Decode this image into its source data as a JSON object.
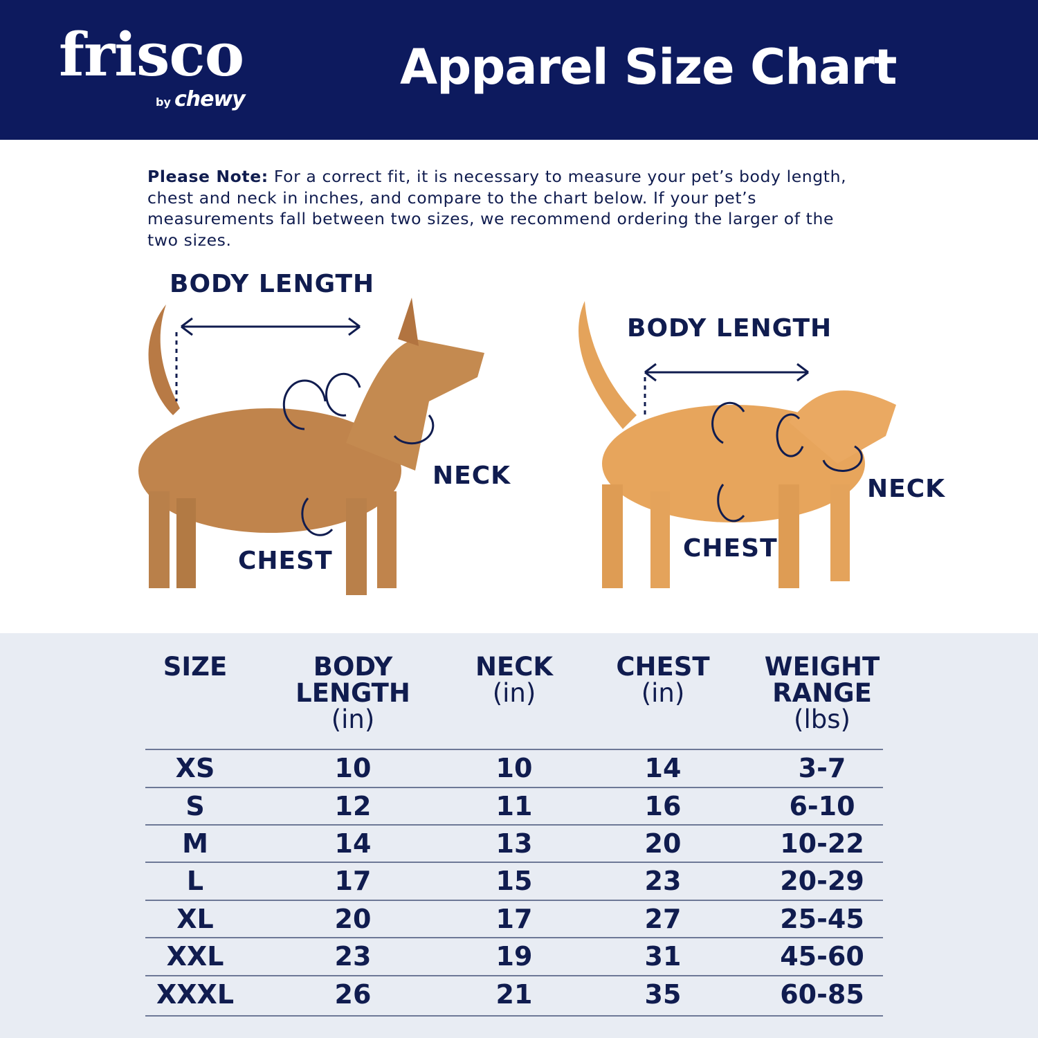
{
  "brand": {
    "logo": "frisco",
    "sub_by": "by",
    "sub_brand": "chewy"
  },
  "title": "Apparel Size Chart",
  "note": {
    "bold": "Please Note:",
    "text": " For a correct fit, it is necessary to measure your pet’s body length, chest and neck in inches, and compare to the chart below. If your pet’s measurements fall between two sizes, we recommend ordering the larger of the two sizes."
  },
  "dog_labels": {
    "body_length": "BODY LENGTH",
    "neck": "NECK",
    "chest": "CHEST"
  },
  "cat_labels": {
    "body_length": "BODY LENGTH",
    "neck": "NECK",
    "chest": "CHEST"
  },
  "colors": {
    "navy": "#0d1a5e",
    "text": "#101c4f",
    "table_bg": "#e8ecf3"
  },
  "table": {
    "headers": [
      {
        "name": "SIZE",
        "unit": ""
      },
      {
        "name": "BODY LENGTH",
        "unit": "(in)"
      },
      {
        "name": "NECK",
        "unit": "(in)"
      },
      {
        "name": "CHEST",
        "unit": "(in)"
      },
      {
        "name": "WEIGHT RANGE",
        "unit": "(lbs)"
      }
    ],
    "rows": [
      [
        "XS",
        "10",
        "10",
        "14",
        "3-7"
      ],
      [
        "S",
        "12",
        "11",
        "16",
        "6-10"
      ],
      [
        "M",
        "14",
        "13",
        "20",
        "10-22"
      ],
      [
        "L",
        "17",
        "15",
        "23",
        "20-29"
      ],
      [
        "XL",
        "20",
        "17",
        "27",
        "25-45"
      ],
      [
        "XXL",
        "23",
        "19",
        "31",
        "45-60"
      ],
      [
        "XXXL",
        "26",
        "21",
        "35",
        "60-85"
      ]
    ]
  }
}
